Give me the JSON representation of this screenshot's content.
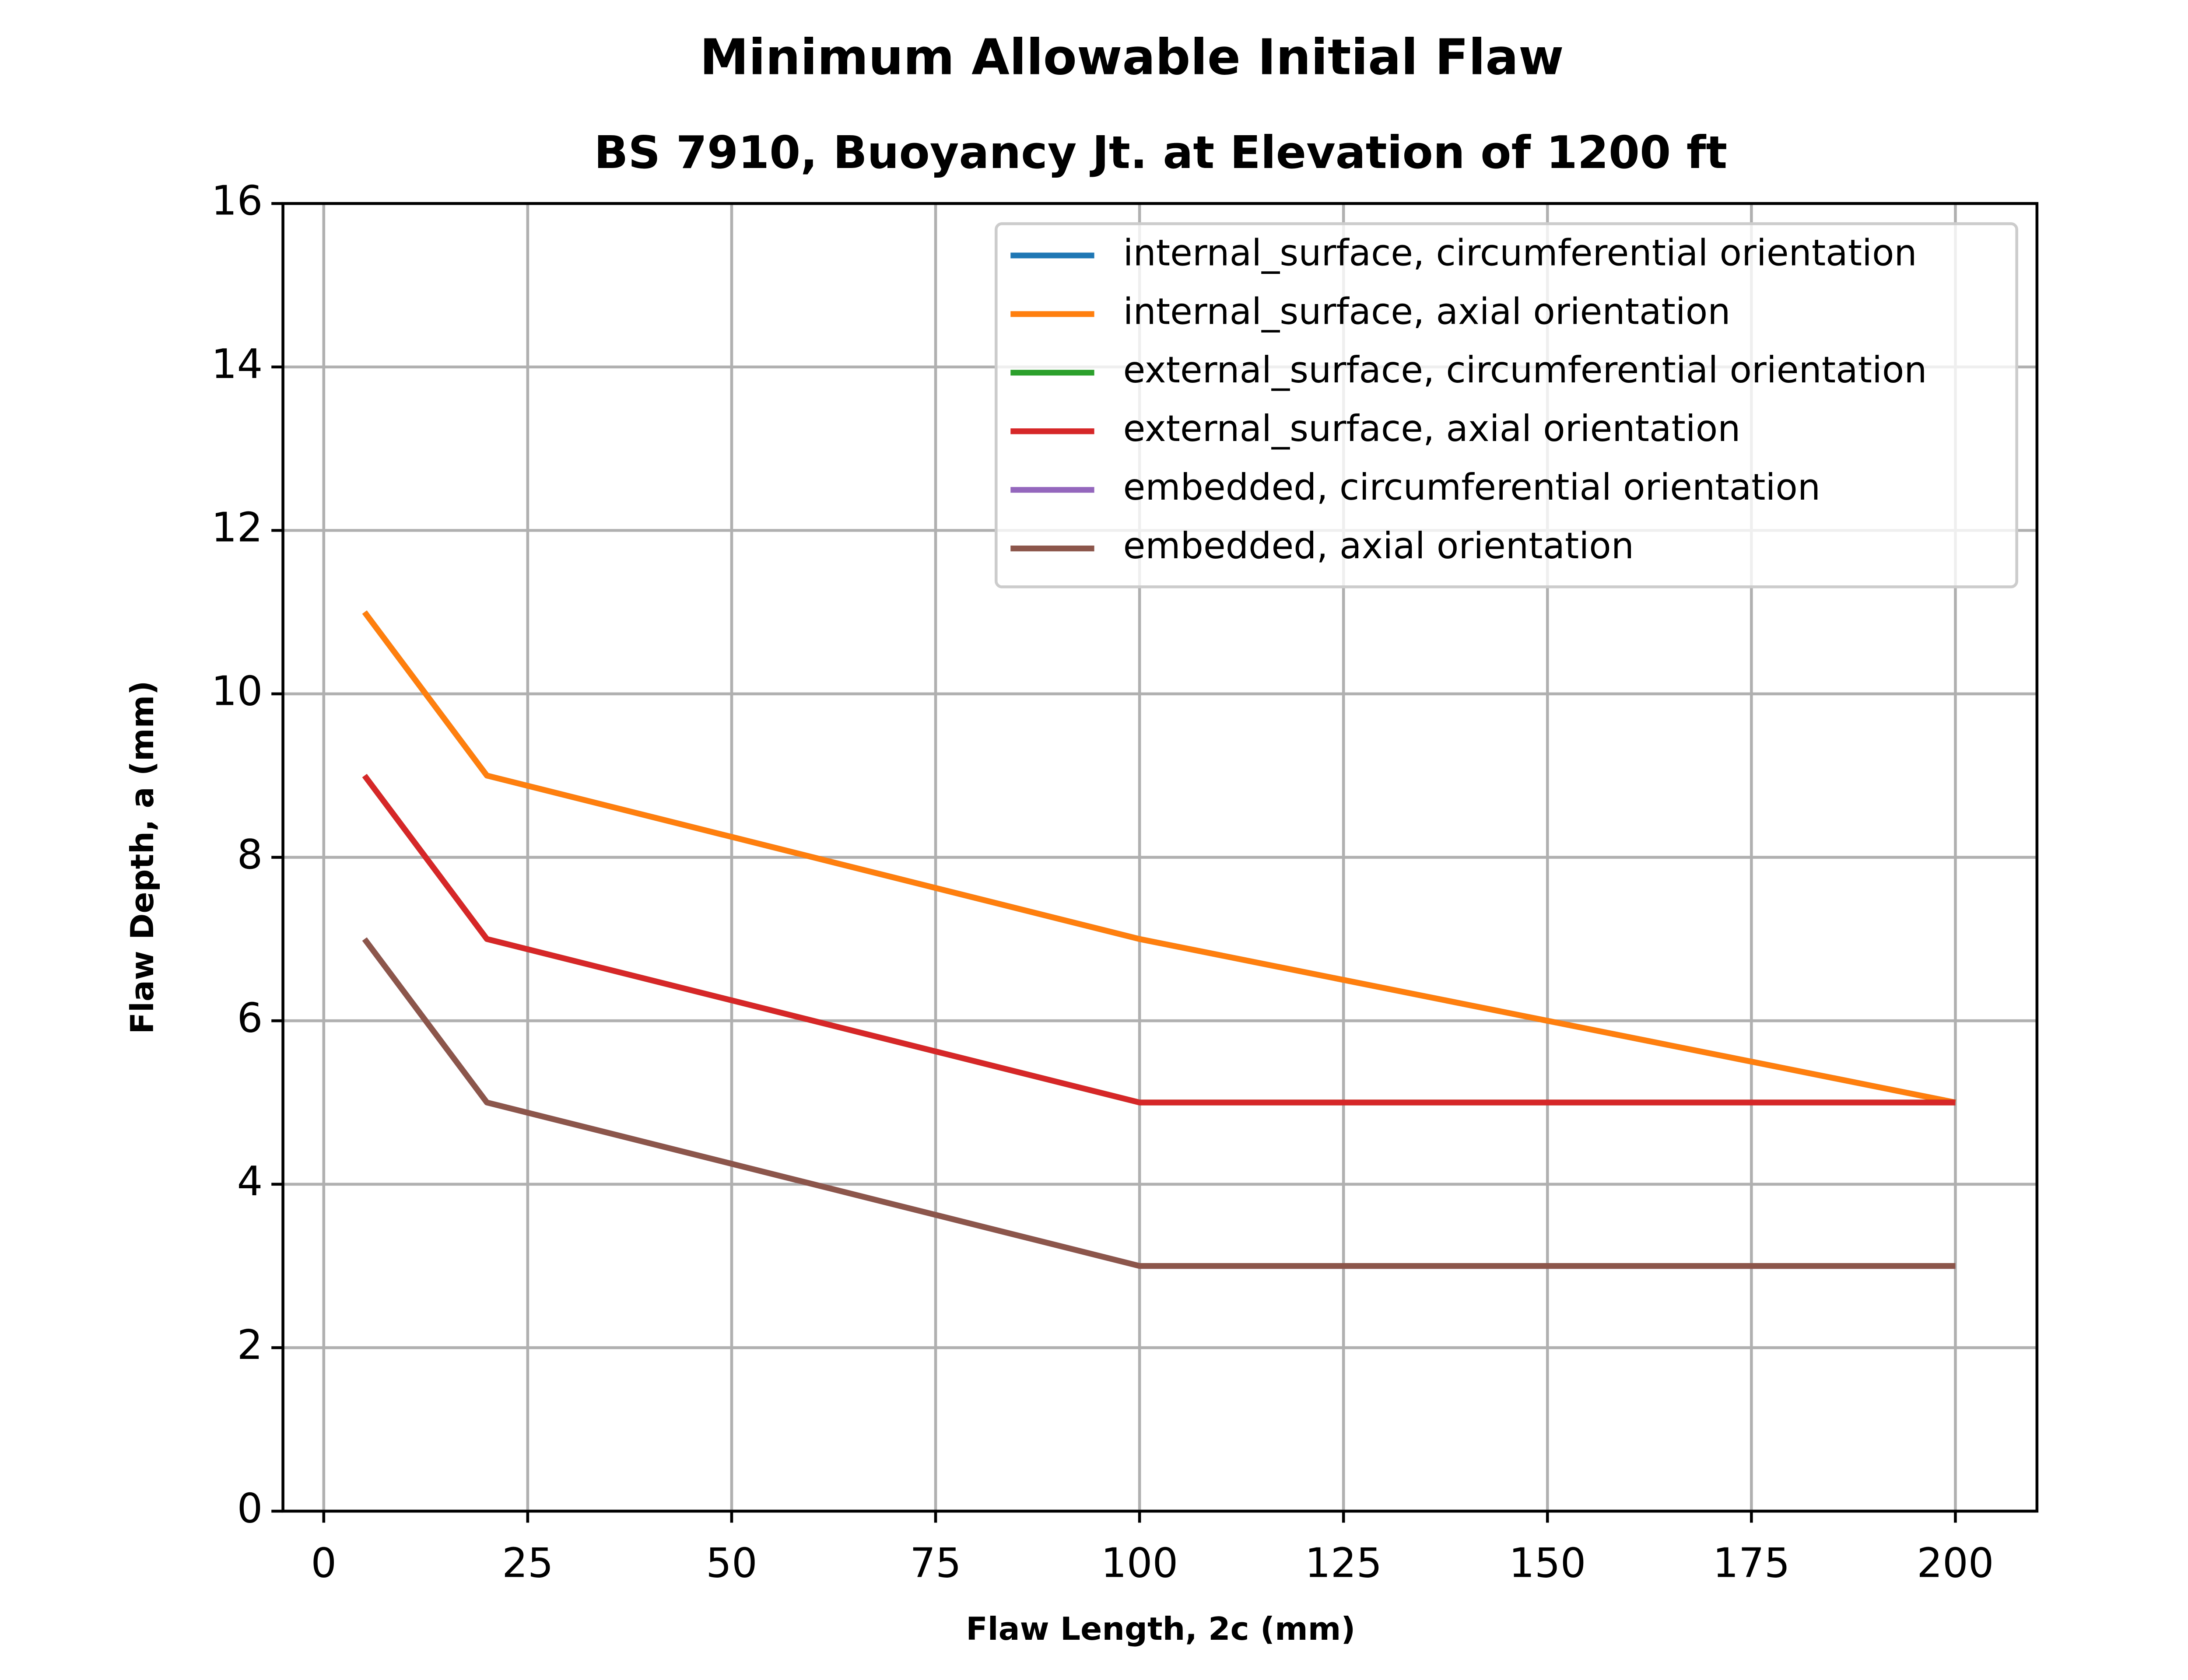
{
  "chart_data": {
    "type": "line",
    "title": "Minimum Allowable Initial Flaw",
    "subtitle": "BS 7910, Buoyancy Jt. at Elevation of 1200 ft",
    "x_label": "Flaw Length, 2c (mm)",
    "y_label": "Flaw Depth, a (mm)",
    "x": [
      5,
      20,
      100,
      200
    ],
    "series": [
      {
        "name": "internal_surface, circumferential orientation",
        "color": "#1f77b4",
        "values": [
          11,
          9,
          7,
          5
        ]
      },
      {
        "name": "internal_surface, axial orientation",
        "color": "#ff7f0e",
        "values": [
          11,
          9,
          7,
          5
        ]
      },
      {
        "name": "external_surface, circumferential orientation",
        "color": "#2ca02c",
        "values": [
          9,
          7,
          5,
          5
        ]
      },
      {
        "name": "external_surface, axial orientation",
        "color": "#d62728",
        "values": [
          9,
          7,
          5,
          5
        ]
      },
      {
        "name": "embedded, circumferential orientation",
        "color": "#9467bd",
        "values": [
          7,
          5,
          3,
          3
        ]
      },
      {
        "name": "embedded, axial orientation",
        "color": "#8c564b",
        "values": [
          7,
          5,
          3,
          3
        ]
      }
    ],
    "xlim": [
      -5,
      210
    ],
    "xticks": [
      0,
      25,
      50,
      75,
      100,
      125,
      150,
      175,
      200
    ],
    "ylim": [
      0,
      16
    ],
    "yticks": [
      0,
      2,
      4,
      6,
      8,
      10,
      12,
      14,
      16
    ],
    "grid": true,
    "legend": "upper right"
  }
}
